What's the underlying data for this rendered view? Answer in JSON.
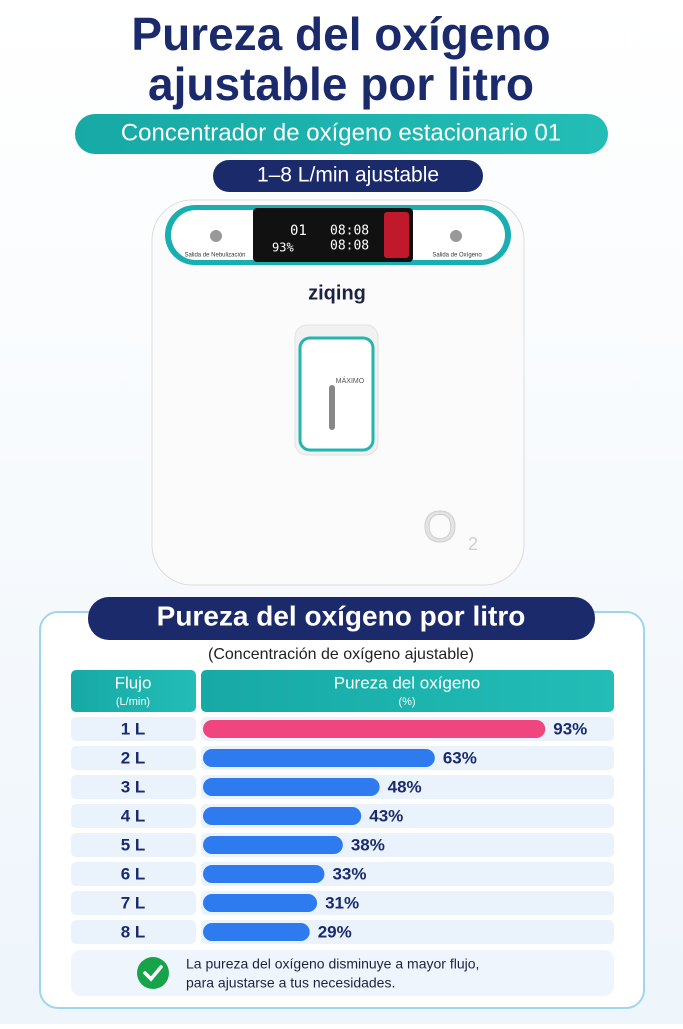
{
  "header": {
    "title_line1": "Pureza del oxígeno",
    "title_line2": "ajustable por litro",
    "subtitle": "Concentrador de oxígeno estacionario 01",
    "badge": "1–8 L/min ajustable"
  },
  "device": {
    "brand": "ziqing",
    "left_port": "Salida de Nebulización",
    "right_port": "Salida de Oxígeno",
    "knob_label": "MÁXIMO",
    "display_flow": "01",
    "display_purity": "93%",
    "display_time": "08:08"
  },
  "chart_data": {
    "type": "bar",
    "orientation": "horizontal",
    "title": "Pureza del oxígeno por litro",
    "subtitle": "(Concentración de oxígeno ajustable)",
    "category_header": "Flujo",
    "category_unit": "(L/min)",
    "value_header": "Pureza del oxígeno",
    "value_unit": "(%)",
    "categories": [
      "1 L",
      "2 L",
      "3 L",
      "4 L",
      "5 L",
      "6 L",
      "7 L",
      "8 L"
    ],
    "values": [
      93,
      63,
      48,
      43,
      38,
      33,
      31,
      29
    ],
    "value_labels": [
      "93%",
      "63%",
      "48%",
      "43%",
      "38%",
      "33%",
      "31%",
      "29%"
    ],
    "colors": [
      "#f0457e",
      "#2e7bf0",
      "#2e7bf0",
      "#2e7bf0",
      "#2e7bf0",
      "#2e7bf0",
      "#2e7bf0",
      "#2e7bf0"
    ],
    "xlim": [
      0,
      100
    ]
  },
  "note": {
    "line1": "La pureza del oxígeno disminuye a mayor flujo,",
    "line2": "para ajustarse a tus necesidades."
  }
}
